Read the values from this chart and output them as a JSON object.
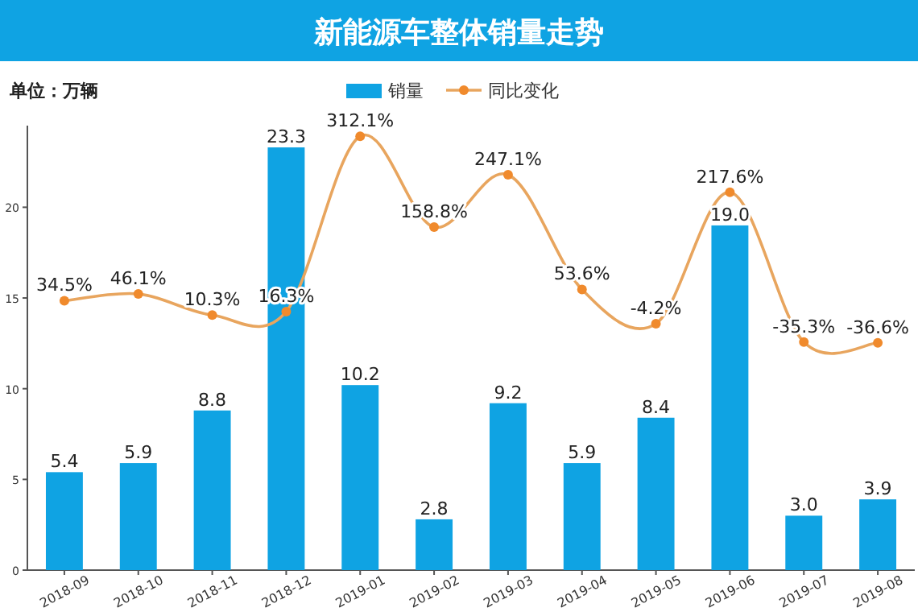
{
  "chart_data": {
    "type": "bar",
    "title": "新能源车整体销量走势",
    "annotations": [
      "单位：万辆"
    ],
    "categories": [
      "2018-09",
      "2018-10",
      "2018-11",
      "2018-12",
      "2019-01",
      "2019-02",
      "2019-03",
      "2019-04",
      "2019-05",
      "2019-06",
      "2019-07",
      "2019-08"
    ],
    "series": [
      {
        "name": "销量",
        "color": "#0fa3e3",
        "values": [
          5.4,
          5.9,
          8.8,
          23.3,
          10.2,
          2.8,
          9.2,
          5.9,
          8.4,
          19.0,
          3.0,
          3.9
        ],
        "value_labels": [
          "5.4",
          "5.9",
          "8.8",
          "23.3",
          "10.2",
          "2.8",
          "9.2",
          "5.9",
          "8.4",
          "19.0",
          "3.0",
          "3.9"
        ]
      },
      {
        "name": "同比变化",
        "type": "line",
        "axis": "y2",
        "color": "#e8a55e",
        "values": [
          34.5,
          46.1,
          10.3,
          16.3,
          312.1,
          158.8,
          247.1,
          53.6,
          -4.2,
          217.6,
          -35.3,
          -36.6
        ],
        "value_labels": [
          "34.5%",
          "46.1%",
          "10.3%",
          "16.3%",
          "312.1%",
          "158.8%",
          "247.1%",
          "53.6%",
          "-4.2%",
          "217.6%",
          "-35.3%",
          "-36.6%"
        ]
      }
    ],
    "ylim": [
      0,
      24.5
    ],
    "yticks": [
      0,
      5,
      10,
      15,
      20
    ],
    "y2lim": [
      -420,
      330
    ],
    "legend": "top",
    "marker": "circle",
    "line_style": "solid",
    "grid": false
  }
}
